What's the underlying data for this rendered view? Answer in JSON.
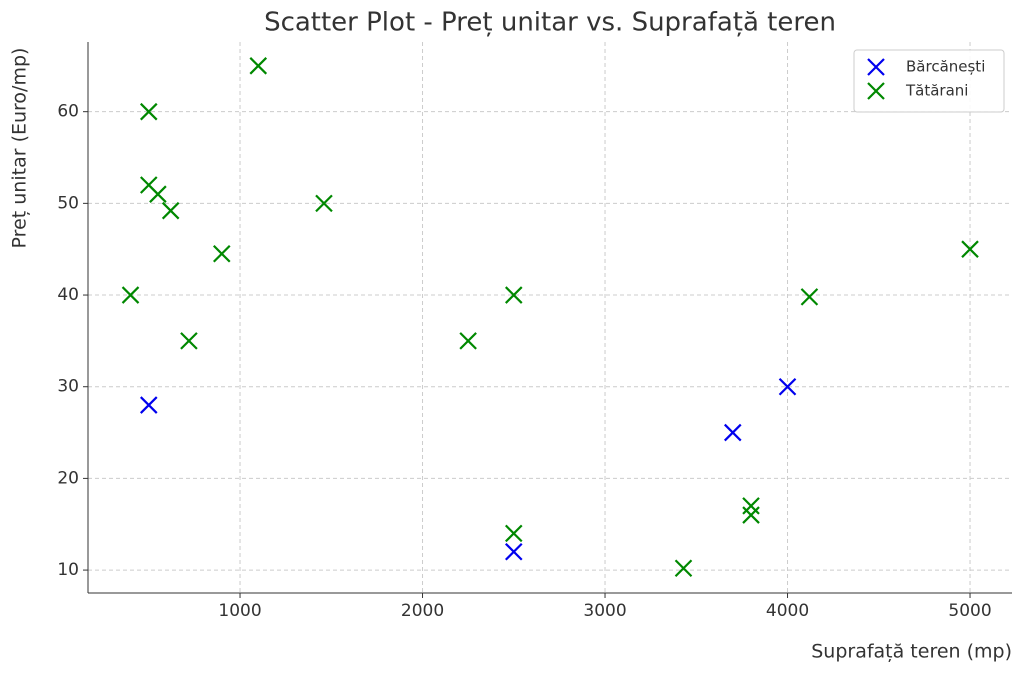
{
  "chart_data": {
    "type": "scatter",
    "title": "Scatter Plot - Preț unitar vs. Suprafață teren",
    "x_label": "Suprafață teren (mp)",
    "y_label": "Preț unitar (Euro/mp)",
    "xlim": [
      167,
      5230
    ],
    "ylim": [
      7.5,
      67.6
    ],
    "xticks": [
      1000,
      2000,
      3000,
      4000,
      5000
    ],
    "yticks": [
      10,
      20,
      30,
      40,
      50,
      60
    ],
    "grid": true,
    "legend": "upper right",
    "marker": "x",
    "series": [
      {
        "name": "Bărcănești",
        "color": "#0000ee",
        "x": [
          500,
          2500,
          3700,
          4000
        ],
        "values": [
          28,
          12,
          25,
          30
        ]
      },
      {
        "name": "Tătărani",
        "color": "#008800",
        "x": [
          500,
          1100,
          400,
          500,
          550,
          620,
          900,
          720,
          1460,
          2250,
          2500,
          2500,
          3430,
          3800,
          3800,
          4120,
          5000
        ],
        "values": [
          60,
          65,
          40,
          52,
          51,
          49.2,
          44.5,
          35,
          50,
          35,
          40,
          14,
          10.2,
          17,
          16,
          39.8,
          45
        ]
      }
    ]
  }
}
